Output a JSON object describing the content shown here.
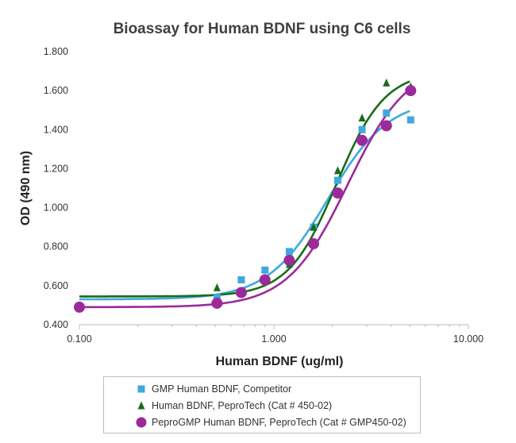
{
  "chart_data": {
    "type": "scatter",
    "title": "Bioassay for Human BDNF using C6 cells",
    "xlabel": "Human BDNF (ug/ml)",
    "ylabel": "OD (490 nm)",
    "xscale": "log",
    "xlim": [
      0.1,
      10
    ],
    "ylim": [
      0.4,
      1.8
    ],
    "xticks": [
      "0.100",
      "1.000",
      "10.000"
    ],
    "yticks": [
      "0.400",
      "0.600",
      "0.800",
      "1.000",
      "1.200",
      "1.400",
      "1.600",
      "1.800"
    ],
    "grid": false,
    "legend_position": "bottom",
    "series": [
      {
        "name": "GMP Human BDNF, Competitor",
        "color": "#3fa9dd",
        "marker": "square",
        "x": [
          0.51,
          0.68,
          0.9,
          1.2,
          1.6,
          2.13,
          2.84,
          3.79,
          5.05
        ],
        "y": [
          0.54,
          0.63,
          0.68,
          0.775,
          0.9,
          1.14,
          1.4,
          1.485,
          1.45
        ],
        "fit": {
          "bottom": 0.53,
          "top": 1.56,
          "ec50": 1.9,
          "hill": 2.8
        }
      },
      {
        "name": "Human BDNF, PeproTech (Cat # 450-02)",
        "color": "#1a6b1a",
        "marker": "triangle",
        "x": [
          0.51,
          0.68,
          0.9,
          1.2,
          1.6,
          2.13,
          2.84,
          3.79,
          5.05
        ],
        "y": [
          0.59,
          0.57,
          0.64,
          0.71,
          0.9,
          1.19,
          1.46,
          1.64,
          1.62
        ],
        "fit": {
          "bottom": 0.545,
          "top": 1.7,
          "ec50": 2.1,
          "hill": 3.5
        }
      },
      {
        "name": "PeproGMP Human BDNF, PeproTech (Cat # GMP450-02)",
        "color": "#9b2a9b",
        "marker": "circle",
        "x": [
          0.1,
          0.51,
          0.68,
          0.9,
          1.2,
          1.6,
          2.13,
          2.84,
          3.79,
          5.05
        ],
        "y": [
          0.49,
          0.51,
          0.565,
          0.63,
          0.73,
          0.815,
          1.075,
          1.345,
          1.42,
          1.6
        ],
        "fit": {
          "bottom": 0.49,
          "top": 1.75,
          "ec50": 2.4,
          "hill": 2.8
        }
      }
    ]
  }
}
